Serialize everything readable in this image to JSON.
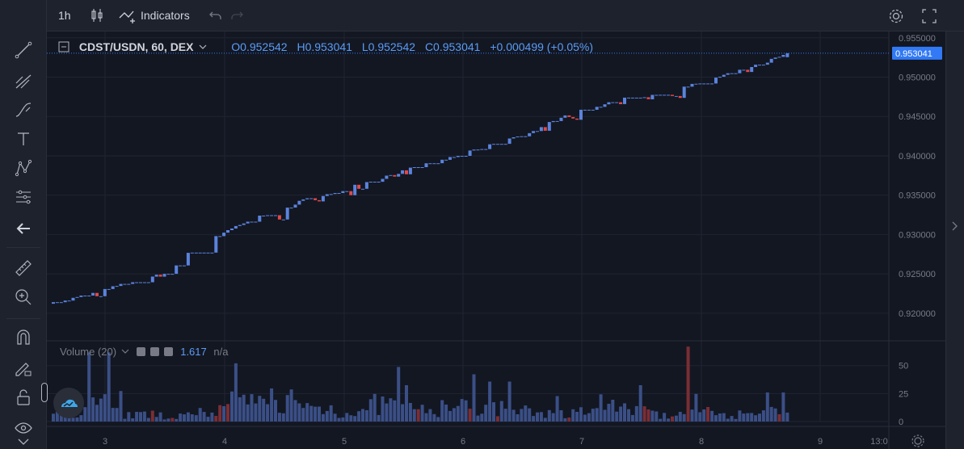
{
  "toolbar": {
    "interval": "1h",
    "indicators_label": "Indicators"
  },
  "legend": {
    "symbol": "CDST/USDN, 60, DEX",
    "open": "O0.952542",
    "high": "H0.953041",
    "low": "L0.952542",
    "close": "C0.953041",
    "change": "+0.000499 (+0.05%)"
  },
  "volume_legend": {
    "title": "Volume (20)",
    "value": "1.617",
    "ma_value": "n/a"
  },
  "colors": {
    "background": "#131722",
    "up": "#5b83dd",
    "down": "#e04848",
    "vol_up": "#3b4f86",
    "vol_down": "#7a2e35",
    "last_price": "#3179f5"
  },
  "icons": [
    "crosshair-icon",
    "trendline-icon",
    "fib-icon",
    "brush-icon",
    "text-icon",
    "pattern-icon",
    "forecast-icon",
    "back-arrow-icon",
    "ruler-icon",
    "zoom-in-icon",
    "magnet-icon",
    "lock-drawing-icon",
    "lock-icon",
    "eye-icon",
    "candle-icon",
    "indicators-icon",
    "undo-icon",
    "redo-icon",
    "settings-icon",
    "fullscreen-icon"
  ],
  "chart_data": {
    "type": "candlestick",
    "price_axis": {
      "ticks": [
        "0.955000",
        "0.950000",
        "0.945000",
        "0.940000",
        "0.935000",
        "0.930000",
        "0.925000",
        "0.920000"
      ],
      "range": [
        0.9168,
        0.9558
      ]
    },
    "last_price_label": "0.953041",
    "last_price": 0.953041,
    "volume_axis": {
      "ticks": [
        "50",
        "25",
        "0"
      ],
      "range": [
        0,
        70
      ]
    },
    "time_axis": {
      "labels": [
        "3",
        "4",
        "5",
        "6",
        "7",
        "8",
        "9",
        "13:0"
      ]
    },
    "candles_start": [
      0.9212,
      0.9214
    ],
    "candles_end": [
      0.95254,
      0.95304
    ],
    "path_anchors": [
      [
        0,
        0.9212
      ],
      [
        10,
        0.9225
      ],
      [
        20,
        0.924
      ],
      [
        28,
        0.925
      ],
      [
        34,
        0.9275
      ],
      [
        40,
        0.9295
      ],
      [
        48,
        0.9315
      ],
      [
        56,
        0.933
      ],
      [
        64,
        0.9345
      ],
      [
        72,
        0.9355
      ],
      [
        80,
        0.9368
      ],
      [
        88,
        0.938
      ],
      [
        96,
        0.9392
      ],
      [
        104,
        0.9403
      ],
      [
        112,
        0.9417
      ],
      [
        120,
        0.943
      ],
      [
        128,
        0.9448
      ],
      [
        136,
        0.9462
      ],
      [
        144,
        0.9472
      ],
      [
        152,
        0.9478
      ],
      [
        160,
        0.9488
      ],
      [
        168,
        0.95
      ],
      [
        176,
        0.9512
      ],
      [
        185,
        0.953
      ]
    ],
    "volume_peaks": [
      0.5,
      0.95,
      0.3,
      0.25,
      0.5,
      0.8,
      1.0,
      0.6,
      0.4,
      0.75,
      0.5,
      0.65,
      0.55,
      0.45,
      0.35,
      0.9,
      0.5,
      0.3,
      0.75,
      0.3,
      0.4
    ]
  }
}
